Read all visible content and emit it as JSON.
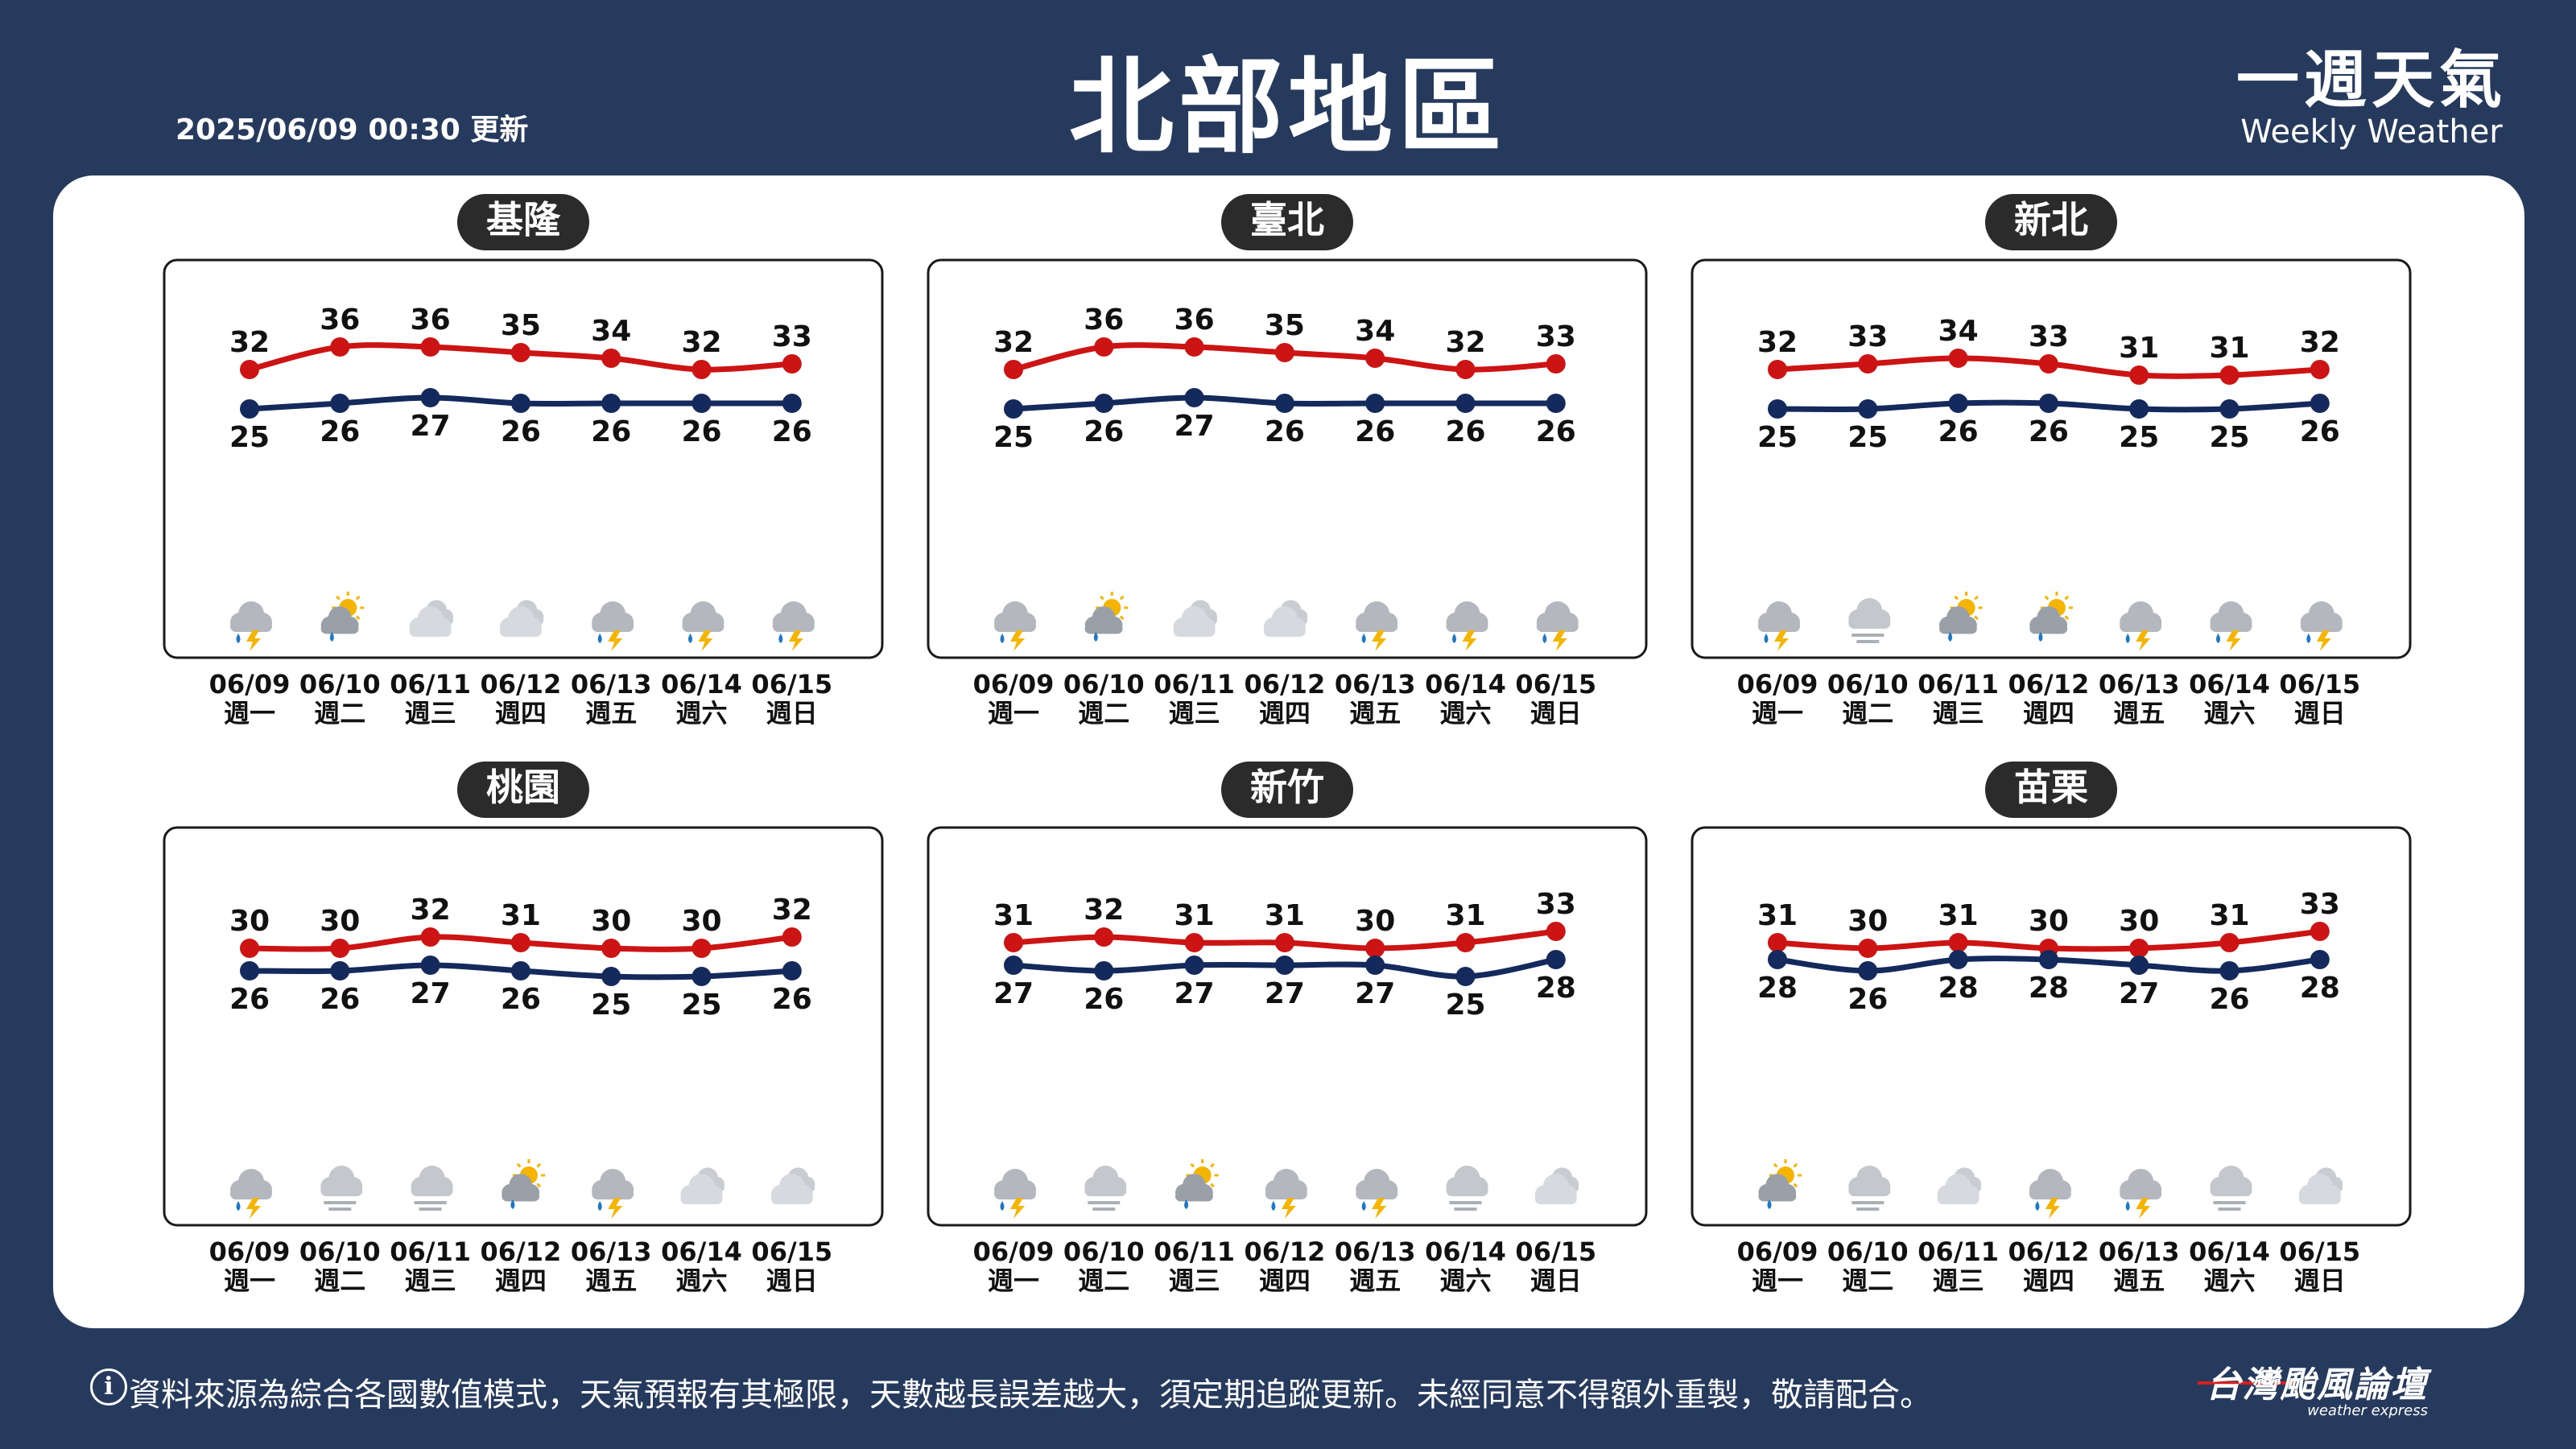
{
  "header": {
    "update_time": "2025/06/09 00:30 更新",
    "region_title": "北部地區",
    "brand_zh": "一週天氣",
    "brand_en": "Weekly Weather"
  },
  "footer": {
    "info_icon": "i",
    "notice": "資料來源為綜合各國數值模式，天氣預報有其極限，天數越長誤差越大，須定期追蹤更新。未經同意不得額外重製，敬請配合。",
    "logo_text": "台灣颱風論壇",
    "logo_sub": "weather express"
  },
  "colors": {
    "background": "#263a5e",
    "high": "#cc1414",
    "low": "#142a5c",
    "label_bg": "#2b2b2b"
  },
  "chart_data": [
    {
      "type": "line",
      "title": "基隆",
      "x": [
        "06/09",
        "06/10",
        "06/11",
        "06/12",
        "06/13",
        "06/14",
        "06/15"
      ],
      "weekdays": [
        "週一",
        "週二",
        "週三",
        "週四",
        "週五",
        "週六",
        "週日"
      ],
      "series": [
        {
          "values": [
            32,
            36,
            36,
            35,
            34,
            32,
            33
          ]
        },
        {
          "values": [
            25,
            26,
            27,
            26,
            26,
            26,
            26
          ]
        }
      ],
      "icons": [
        "thunder-cloud-icon",
        "sun-rain-icon",
        "cloudy-icon",
        "cloudy-icon",
        "thunder-cloud-icon",
        "thunder-cloud-icon",
        "thunder-cloud-icon"
      ]
    },
    {
      "type": "line",
      "title": "臺北",
      "x": [
        "06/09",
        "06/10",
        "06/11",
        "06/12",
        "06/13",
        "06/14",
        "06/15"
      ],
      "weekdays": [
        "週一",
        "週二",
        "週三",
        "週四",
        "週五",
        "週六",
        "週日"
      ],
      "series": [
        {
          "values": [
            32,
            36,
            36,
            35,
            34,
            32,
            33
          ]
        },
        {
          "values": [
            25,
            26,
            27,
            26,
            26,
            26,
            26
          ]
        }
      ],
      "icons": [
        "thunder-cloud-icon",
        "sun-rain-icon",
        "cloudy-icon",
        "cloudy-icon",
        "thunder-cloud-icon",
        "thunder-cloud-icon",
        "thunder-cloud-icon"
      ]
    },
    {
      "type": "line",
      "title": "新北",
      "x": [
        "06/09",
        "06/10",
        "06/11",
        "06/12",
        "06/13",
        "06/14",
        "06/15"
      ],
      "weekdays": [
        "週一",
        "週二",
        "週三",
        "週四",
        "週五",
        "週六",
        "週日"
      ],
      "series": [
        {
          "values": [
            32,
            33,
            34,
            33,
            31,
            31,
            32
          ]
        },
        {
          "values": [
            25,
            25,
            26,
            26,
            25,
            25,
            26
          ]
        }
      ],
      "icons": [
        "thunder-cloud-icon",
        "fog-icon",
        "sun-rain-icon",
        "sun-rain-icon",
        "thunder-cloud-icon",
        "thunder-cloud-icon",
        "thunder-cloud-icon"
      ]
    },
    {
      "type": "line",
      "title": "桃園",
      "x": [
        "06/09",
        "06/10",
        "06/11",
        "06/12",
        "06/13",
        "06/14",
        "06/15"
      ],
      "weekdays": [
        "週一",
        "週二",
        "週三",
        "週四",
        "週五",
        "週六",
        "週日"
      ],
      "series": [
        {
          "values": [
            30,
            30,
            32,
            31,
            30,
            30,
            32
          ]
        },
        {
          "values": [
            26,
            26,
            27,
            26,
            25,
            25,
            26
          ]
        }
      ],
      "icons": [
        "thunder-cloud-icon",
        "fog-icon",
        "fog-icon",
        "sun-rain-icon",
        "thunder-cloud-icon",
        "cloudy-icon",
        "cloudy-icon"
      ]
    },
    {
      "type": "line",
      "title": "新竹",
      "x": [
        "06/09",
        "06/10",
        "06/11",
        "06/12",
        "06/13",
        "06/14",
        "06/15"
      ],
      "weekdays": [
        "週一",
        "週二",
        "週三",
        "週四",
        "週五",
        "週六",
        "週日"
      ],
      "series": [
        {
          "values": [
            31,
            32,
            31,
            31,
            30,
            31,
            33
          ]
        },
        {
          "values": [
            27,
            26,
            27,
            27,
            27,
            25,
            28
          ]
        }
      ],
      "icons": [
        "thunder-cloud-icon",
        "fog-icon",
        "sun-rain-icon",
        "thunder-cloud-icon",
        "thunder-cloud-icon",
        "fog-icon",
        "cloudy-icon"
      ]
    },
    {
      "type": "line",
      "title": "苗栗",
      "x": [
        "06/09",
        "06/10",
        "06/11",
        "06/12",
        "06/13",
        "06/14",
        "06/15"
      ],
      "weekdays": [
        "週一",
        "週二",
        "週三",
        "週四",
        "週五",
        "週六",
        "週日"
      ],
      "series": [
        {
          "values": [
            31,
            30,
            31,
            30,
            30,
            31,
            33
          ]
        },
        {
          "values": [
            28,
            26,
            28,
            28,
            27,
            26,
            28
          ]
        }
      ],
      "icons": [
        "sun-rain-icon",
        "fog-icon",
        "cloudy-icon",
        "thunder-cloud-icon",
        "thunder-cloud-icon",
        "fog-icon",
        "cloudy-icon"
      ]
    }
  ]
}
